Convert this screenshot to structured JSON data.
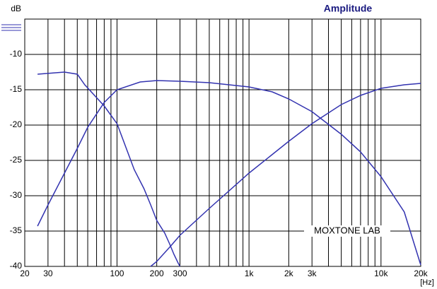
{
  "chart_data": {
    "type": "line",
    "title": "Amplitude",
    "ylabel": "dB",
    "xlabel": "[Hz]",
    "annotation": "MOXTONE LAB",
    "xscale": "log",
    "grid": true,
    "xlim": [
      20,
      20000
    ],
    "ylim": [
      -40,
      -5
    ],
    "xticks": [
      20,
      30,
      100,
      200,
      300,
      {
        "value": 1000,
        "label": "1k"
      },
      {
        "value": 2000,
        "label": "2k"
      },
      {
        "value": 3000,
        "label": "3k"
      },
      {
        "value": 10000,
        "label": "10k"
      },
      {
        "value": 20000,
        "label": "20k"
      }
    ],
    "xminor": [
      40,
      50,
      60,
      70,
      80,
      90,
      400,
      500,
      600,
      700,
      800,
      900,
      4000,
      5000,
      6000,
      7000,
      8000,
      9000
    ],
    "yticks": [
      -40,
      -35,
      -30,
      -25,
      -20,
      -15,
      -10
    ],
    "series": [
      {
        "color": "#3333b0",
        "x": [
          25,
          40,
          50,
          57,
          80,
          100,
          135,
          160,
          180,
          200,
          230,
          250,
          270,
          290,
          300
        ],
        "values": [
          -12.8,
          -12.5,
          -12.8,
          -14.3,
          -17.3,
          -19.8,
          -26.3,
          -29,
          -31.3,
          -33.5,
          -35.3,
          -36.8,
          -38.3,
          -39.5,
          -40
        ]
      },
      {
        "color": "#3333b0",
        "x": [
          25,
          30,
          40,
          50,
          60,
          80,
          100,
          150,
          200,
          300,
          500,
          1000,
          1500,
          2000,
          3000,
          5000,
          7000,
          10000,
          15000,
          20000
        ],
        "values": [
          -34.3,
          -31.3,
          -26.8,
          -23.3,
          -20.3,
          -16.8,
          -15,
          -13.9,
          -13.7,
          -13.8,
          -14,
          -14.6,
          -15.3,
          -16.3,
          -18.1,
          -21.3,
          -23.8,
          -27.3,
          -32.3,
          -39.8
        ]
      },
      {
        "color": "#3333b0",
        "x": [
          180,
          200,
          250,
          300,
          500,
          1000,
          2000,
          3000,
          5000,
          7000,
          10000,
          15000,
          20000
        ],
        "values": [
          -40,
          -39.3,
          -37.3,
          -35.6,
          -31.8,
          -26.8,
          -22.3,
          -19.8,
          -17.1,
          -15.8,
          -14.8,
          -14.3,
          -14.1
        ]
      }
    ]
  }
}
